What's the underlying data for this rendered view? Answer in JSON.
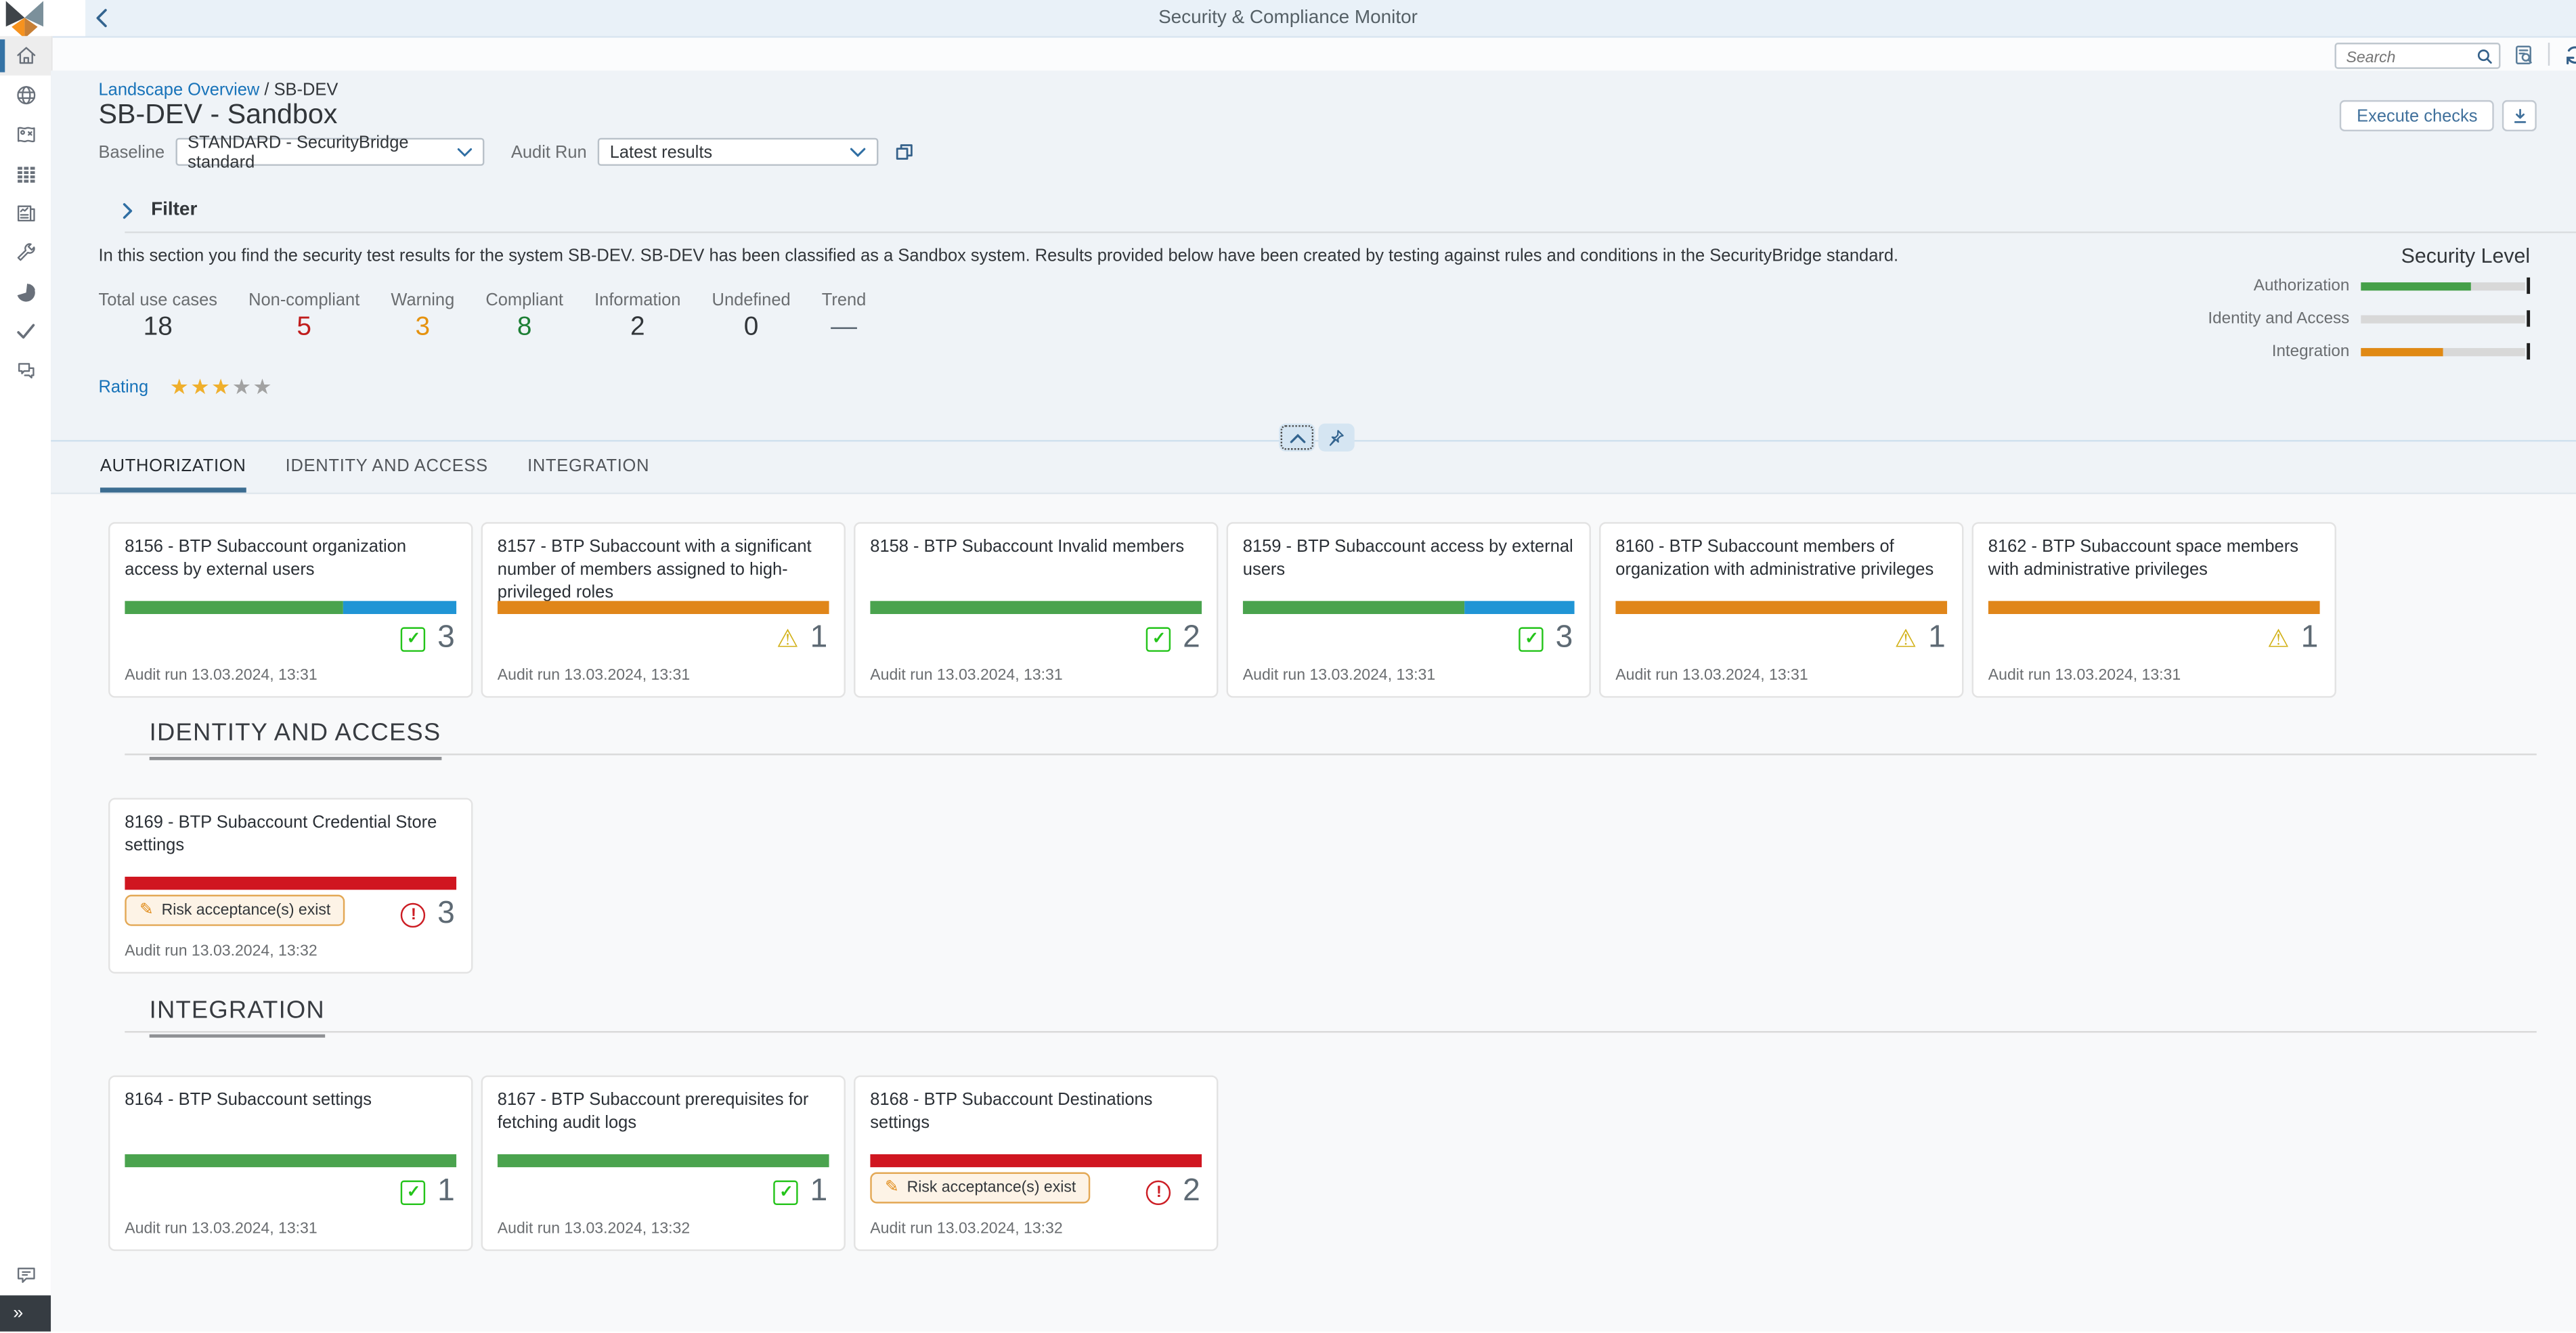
{
  "shell": {
    "title": "Security & Compliance Monitor",
    "search_placeholder": "Search",
    "expand_label": "»"
  },
  "sidebar": {
    "items": [
      {
        "icon": "home-icon",
        "active": true
      },
      {
        "icon": "globe-icon",
        "active": false
      },
      {
        "icon": "map-icon",
        "active": false
      },
      {
        "icon": "grid-icon",
        "active": false
      },
      {
        "icon": "report-icon",
        "active": false
      },
      {
        "icon": "tools-icon",
        "active": false
      },
      {
        "icon": "pie-chart-icon",
        "active": false
      },
      {
        "icon": "check-icon",
        "active": false
      },
      {
        "icon": "discussion-icon",
        "active": false
      }
    ],
    "bottom_icon": "feedback-icon"
  },
  "page": {
    "breadcrumb": {
      "link": "Landscape Overview",
      "separator": " / ",
      "current": "SB-DEV"
    },
    "title": "SB-DEV - Sandbox",
    "baseline": {
      "label": "Baseline",
      "value": "STANDARD - SecurityBridge standard"
    },
    "audit_run": {
      "label": "Audit Run",
      "value": "Latest results"
    },
    "execute_button": "Execute checks",
    "filter_label": "Filter",
    "description": "In this section you find the security test results for the system SB-DEV. SB-DEV has been classified as a Sandbox system. Results provided below have been created by testing against rules and conditions in the SecurityBridge standard.",
    "kpis": [
      {
        "label": "Total use cases",
        "value": "18",
        "color": "#32363a"
      },
      {
        "label": "Non-compliant",
        "value": "5",
        "color": "#c01c1c"
      },
      {
        "label": "Warning",
        "value": "3",
        "color": "#e5920f"
      },
      {
        "label": "Compliant",
        "value": "8",
        "color": "#1d7f35"
      },
      {
        "label": "Information",
        "value": "2",
        "color": "#32363a"
      },
      {
        "label": "Undefined",
        "value": "0",
        "color": "#32363a"
      },
      {
        "label": "Trend",
        "value": "—",
        "color": "#5f6b76"
      }
    ],
    "security_level": {
      "title": "Security Level",
      "rows": [
        {
          "label": "Authorization",
          "pct": 67,
          "color": "#45a049"
        },
        {
          "label": "Identity and Access",
          "pct": 0,
          "color": "#45a049"
        },
        {
          "label": "Integration",
          "pct": 50,
          "color": "#e08914"
        }
      ]
    },
    "rating": {
      "label": "Rating",
      "filled": 3,
      "total": 5,
      "star_color": "#efaf2c",
      "empty_color": "#a2a2a2"
    }
  },
  "tabs": [
    {
      "label": "AUTHORIZATION",
      "active": true
    },
    {
      "label": "IDENTITY AND ACCESS",
      "active": false
    },
    {
      "label": "INTEGRATION",
      "active": false
    }
  ],
  "sections": [
    {
      "heading": "",
      "cards": [
        {
          "title": "8156 - BTP Subaccount organization access by external users",
          "segments": [
            {
              "color": "#4aa34e",
              "pct": 66
            },
            {
              "color": "#2095d5",
              "pct": 34
            }
          ],
          "status": "compliant",
          "count": "3",
          "audit": "Audit run 13.03.2024, 13:31"
        },
        {
          "title": "8157 - BTP Subaccount with a significant number of members assigned to high-privileged roles",
          "segments": [
            {
              "color": "#e0861a",
              "pct": 100
            }
          ],
          "status": "warning",
          "count": "1",
          "audit": "Audit run 13.03.2024, 13:31"
        },
        {
          "title": "8158 - BTP Subaccount Invalid members",
          "segments": [
            {
              "color": "#4aa34e",
              "pct": 100
            }
          ],
          "status": "compliant",
          "count": "2",
          "audit": "Audit run 13.03.2024, 13:31"
        },
        {
          "title": "8159 - BTP Subaccount access by external users",
          "segments": [
            {
              "color": "#4aa34e",
              "pct": 67
            },
            {
              "color": "#2095d5",
              "pct": 33
            }
          ],
          "status": "compliant",
          "count": "3",
          "audit": "Audit run 13.03.2024, 13:31"
        },
        {
          "title": "8160 - BTP Subaccount members of organization with administrative privileges",
          "segments": [
            {
              "color": "#e0861a",
              "pct": 100
            }
          ],
          "status": "warning",
          "count": "1",
          "audit": "Audit run 13.03.2024, 13:31"
        },
        {
          "title": "8162 - BTP Subaccount space members with administrative privileges",
          "segments": [
            {
              "color": "#e0861a",
              "pct": 100
            }
          ],
          "status": "warning",
          "count": "1",
          "audit": "Audit run 13.03.2024, 13:31"
        }
      ]
    },
    {
      "heading": "IDENTITY AND ACCESS",
      "cards": [
        {
          "title": "8169 - BTP Subaccount Credential Store settings",
          "segments": [
            {
              "color": "#d01620",
              "pct": 100
            }
          ],
          "status": "error",
          "count": "3",
          "badge": "Risk acceptance(s) exist",
          "audit": "Audit run 13.03.2024, 13:32"
        }
      ]
    },
    {
      "heading": "INTEGRATION",
      "cards": [
        {
          "title": "8164 - BTP Subaccount settings",
          "segments": [
            {
              "color": "#4aa34e",
              "pct": 100
            }
          ],
          "status": "compliant",
          "count": "1",
          "audit": "Audit run 13.03.2024, 13:31"
        },
        {
          "title": "8167 - BTP Subaccount prerequisites for fetching audit logs",
          "segments": [
            {
              "color": "#4aa34e",
              "pct": 100
            }
          ],
          "status": "compliant",
          "count": "1",
          "audit": "Audit run 13.03.2024, 13:32"
        },
        {
          "title": "8168 - BTP Subaccount Destinations settings",
          "segments": [
            {
              "color": "#d01620",
              "pct": 100
            }
          ],
          "status": "error",
          "count": "2",
          "badge": "Risk acceptance(s) exist",
          "audit": "Audit run 13.03.2024, 13:32"
        }
      ]
    }
  ]
}
